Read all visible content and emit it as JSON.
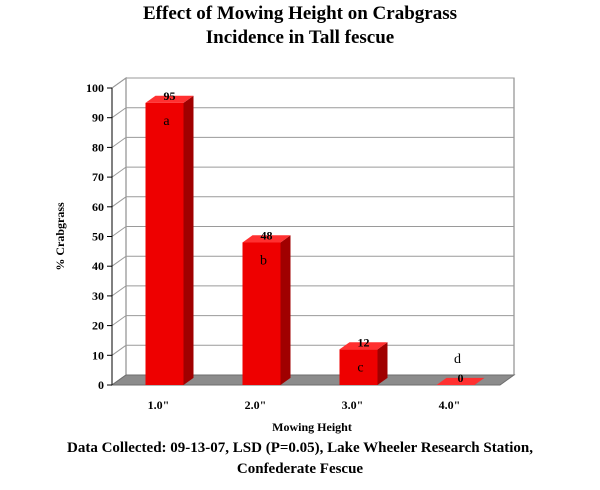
{
  "title_line1": "Effect of Mowing Height on Crabgrass",
  "title_line2": "Incidence in Tall fescue",
  "caption_line1": "Data Collected: 09-13-07, LSD (P=0.05), Lake Wheeler Research Station,",
  "caption_line2": "Confederate Fescue",
  "colors": {
    "bar": "#ee0000",
    "bar_side": "#a00000",
    "bar_top": "#ff3030",
    "floor": "#8c8c8c",
    "wall_line": "#7a7a7a"
  },
  "chart_data": {
    "type": "bar",
    "categories": [
      "1.0\"",
      "2.0\"",
      "3.0\"",
      "4.0\""
    ],
    "values": [
      95,
      48,
      12,
      0
    ],
    "value_labels": [
      "95",
      "48",
      "12",
      "0"
    ],
    "group_letters": [
      "a",
      "b",
      "c",
      "d"
    ],
    "ylabel": "% Crabgrass",
    "xlabel": "Mowing Height",
    "ylim": [
      0,
      100
    ],
    "yticks": [
      0,
      10,
      20,
      30,
      40,
      50,
      60,
      70,
      80,
      90,
      100
    ],
    "grid": true,
    "legend": "none"
  }
}
